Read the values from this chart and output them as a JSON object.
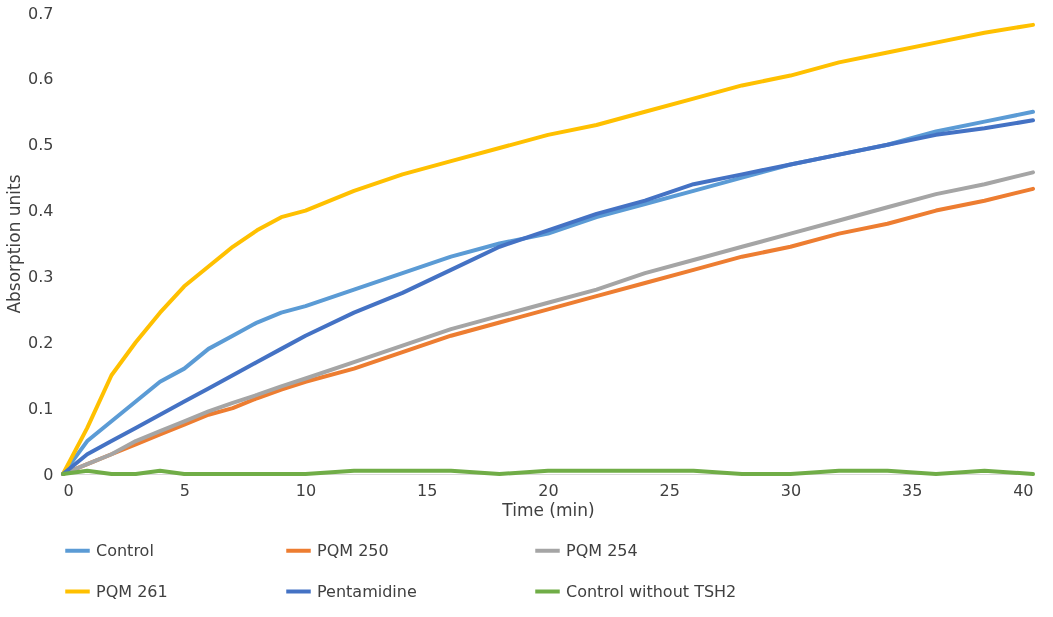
{
  "chart_data": {
    "type": "line",
    "xlabel": "Time (min)",
    "ylabel": "Absorption units",
    "x": [
      0,
      1,
      2,
      3,
      4,
      5,
      6,
      7,
      8,
      9,
      10,
      12,
      14,
      16,
      18,
      20,
      22,
      24,
      26,
      28,
      30,
      32,
      34,
      36,
      38,
      40
    ],
    "xlim": [
      0,
      40
    ],
    "xticks": [
      0,
      5,
      10,
      15,
      20,
      25,
      30,
      35,
      40
    ],
    "ylim": [
      0,
      0.7
    ],
    "yticks": [
      0,
      0.1,
      0.2,
      0.3,
      0.4,
      0.5,
      0.6,
      0.7
    ],
    "grid": false,
    "legend": "bottom",
    "marker": "none",
    "line_style": "solid",
    "series": [
      {
        "name": "Control",
        "color": "#5b9bd5",
        "values": [
          0,
          0.05,
          0.08,
          0.11,
          0.14,
          0.16,
          0.19,
          0.21,
          0.23,
          0.245,
          0.255,
          0.28,
          0.305,
          0.33,
          0.35,
          0.365,
          0.39,
          0.41,
          0.43,
          0.45,
          0.47,
          0.485,
          0.5,
          0.52,
          0.535,
          0.55
        ]
      },
      {
        "name": "PQM 250",
        "color": "#ed7d31",
        "values": [
          0,
          0.015,
          0.03,
          0.045,
          0.06,
          0.075,
          0.09,
          0.1,
          0.115,
          0.128,
          0.14,
          0.16,
          0.185,
          0.21,
          0.23,
          0.25,
          0.27,
          0.29,
          0.31,
          0.33,
          0.345,
          0.365,
          0.38,
          0.4,
          0.415,
          0.433
        ]
      },
      {
        "name": "PQM 254",
        "color": "#a5a5a5",
        "values": [
          0,
          0.015,
          0.03,
          0.05,
          0.065,
          0.08,
          0.095,
          0.108,
          0.12,
          0.133,
          0.145,
          0.17,
          0.195,
          0.22,
          0.24,
          0.26,
          0.28,
          0.305,
          0.325,
          0.345,
          0.365,
          0.385,
          0.405,
          0.425,
          0.44,
          0.458
        ]
      },
      {
        "name": "PQM 261",
        "color": "#ffc000",
        "values": [
          0,
          0.07,
          0.15,
          0.2,
          0.245,
          0.285,
          0.315,
          0.345,
          0.37,
          0.39,
          0.4,
          0.43,
          0.455,
          0.475,
          0.495,
          0.515,
          0.53,
          0.55,
          0.57,
          0.59,
          0.605,
          0.625,
          0.64,
          0.655,
          0.67,
          0.682
        ]
      },
      {
        "name": "Pentamidine",
        "color": "#4472c4",
        "values": [
          0,
          0.03,
          0.05,
          0.07,
          0.09,
          0.11,
          0.13,
          0.15,
          0.17,
          0.19,
          0.21,
          0.245,
          0.275,
          0.31,
          0.345,
          0.37,
          0.395,
          0.415,
          0.44,
          0.455,
          0.47,
          0.485,
          0.5,
          0.515,
          0.525,
          0.537
        ]
      },
      {
        "name": "Control without TSH2",
        "color": "#70ad47",
        "values": [
          0,
          0.005,
          0,
          0,
          0.005,
          0,
          0,
          0,
          0,
          0,
          0,
          0.005,
          0.005,
          0.005,
          0,
          0.005,
          0.005,
          0.005,
          0.005,
          0,
          0,
          0.005,
          0.005,
          0,
          0.005,
          0
        ]
      }
    ]
  }
}
